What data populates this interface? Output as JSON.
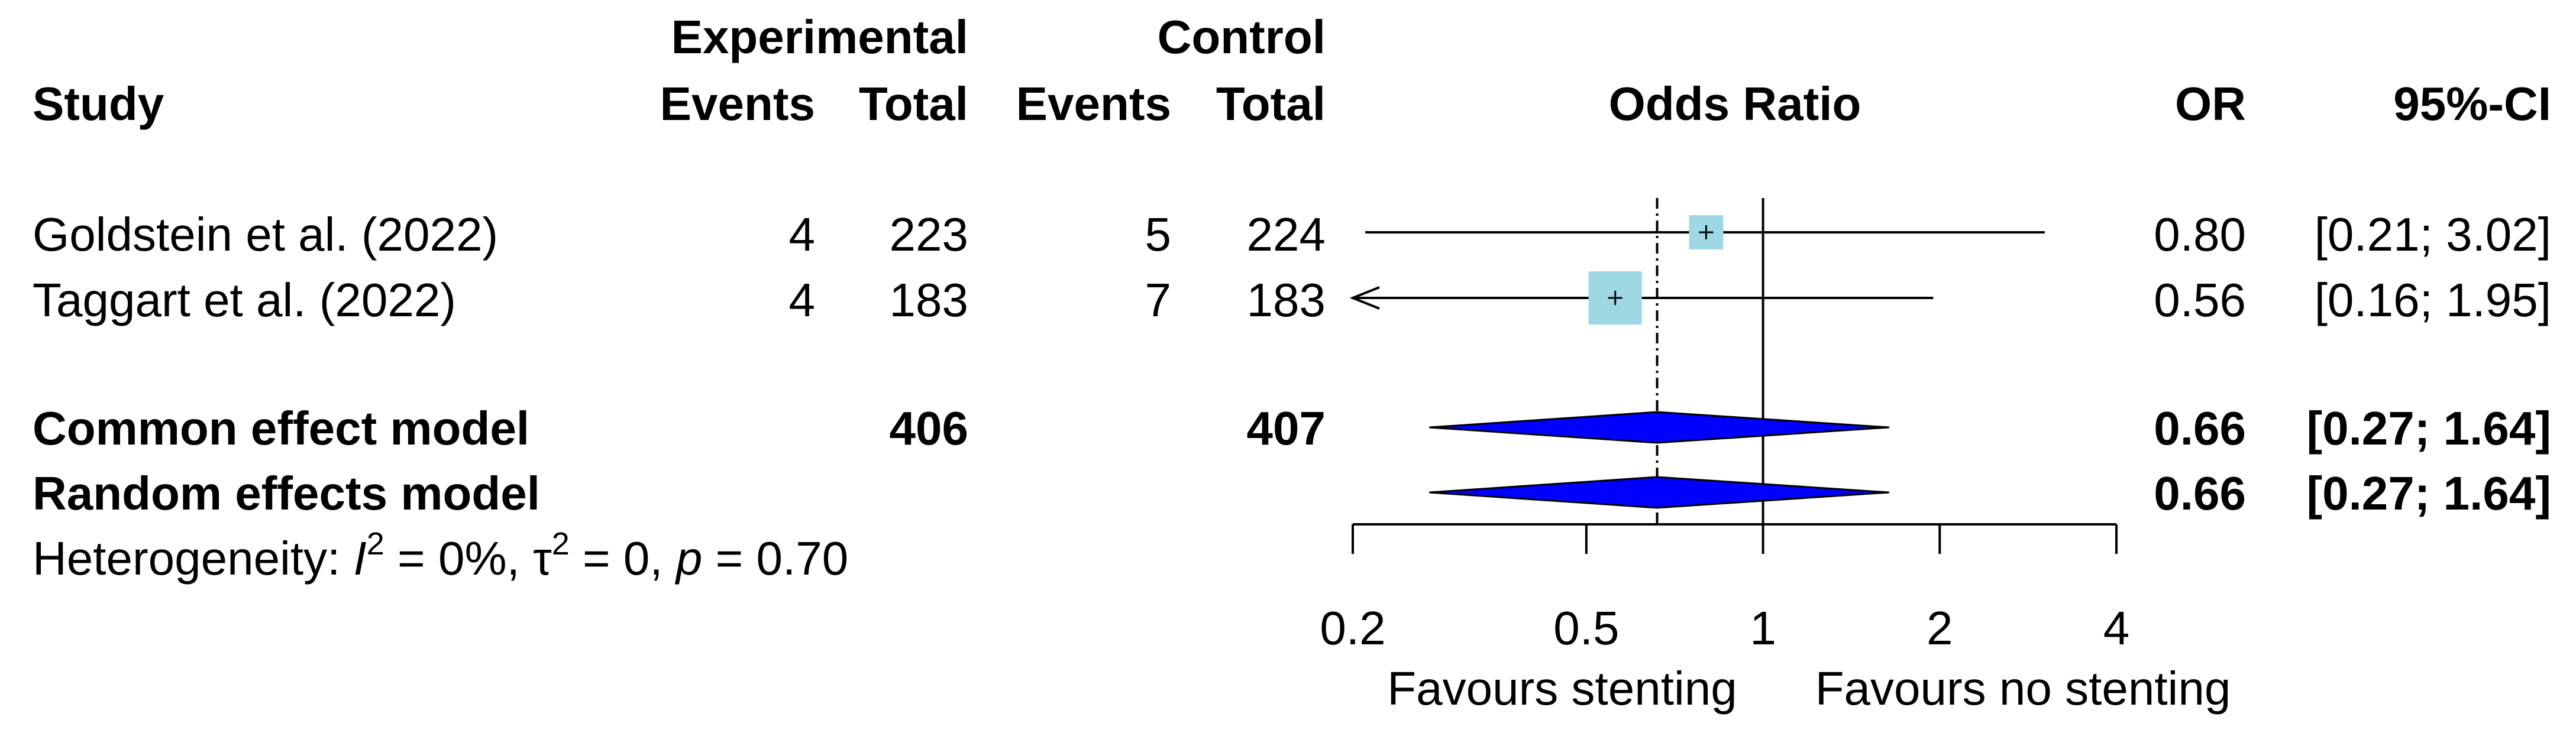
{
  "chart_data": {
    "type": "forest",
    "measure": "Odds Ratio",
    "headers": {
      "study": "Study",
      "experimental": "Experimental",
      "control": "Control",
      "events": "Events",
      "total": "Total",
      "plot_title": "Odds Ratio",
      "or": "OR",
      "ci": "95%-CI"
    },
    "studies": [
      {
        "name": "Goldstein et al. (2022)",
        "exp_events": "4",
        "exp_total": "223",
        "ctrl_events": "5",
        "ctrl_total": "224",
        "or": 0.8,
        "lower": 0.21,
        "upper": 3.02,
        "or_text": "0.80",
        "ci_text": "[0.21; 3.02]",
        "arrow_lower": false,
        "arrow_upper": false
      },
      {
        "name": "Taggart et al. (2022)",
        "exp_events": "4",
        "exp_total": "183",
        "ctrl_events": "7",
        "ctrl_total": "183",
        "or": 0.56,
        "lower": 0.16,
        "upper": 1.95,
        "or_text": "0.56",
        "ci_text": "[0.16; 1.95]",
        "arrow_lower": true,
        "arrow_upper": false
      }
    ],
    "pooled": [
      {
        "name": "Common effect model",
        "exp_total": "406",
        "ctrl_total": "407",
        "or": 0.66,
        "lower": 0.27,
        "upper": 1.64,
        "or_text": "0.66",
        "ci_text": "[0.27; 1.64]"
      },
      {
        "name": "Random effects model",
        "exp_total": "",
        "ctrl_total": "",
        "or": 0.66,
        "lower": 0.27,
        "upper": 1.64,
        "or_text": "0.66",
        "ci_text": "[0.27; 1.64]"
      }
    ],
    "heterogeneity": {
      "prefix": "Heterogeneity: ",
      "i2_label": "I",
      "i2_value": " = 0%, ",
      "tau_label": "τ",
      "tau_value": " = 0, ",
      "p_label": "p",
      "p_value": " = 0.70"
    },
    "x_scale": "log",
    "x_range": [
      0.2,
      4
    ],
    "x_ticks": [
      0.2,
      0.5,
      1,
      2,
      4
    ],
    "x_tick_labels": [
      "0.2",
      "0.5",
      "1",
      "2",
      "4"
    ],
    "null_value": 1,
    "pooled_reference": 0.66,
    "favours_left": "Favours stenting",
    "favours_right": "Favours no stenting",
    "colors": {
      "square": "#9fd8e5",
      "diamond": "#0000ff",
      "line": "#000000"
    }
  }
}
